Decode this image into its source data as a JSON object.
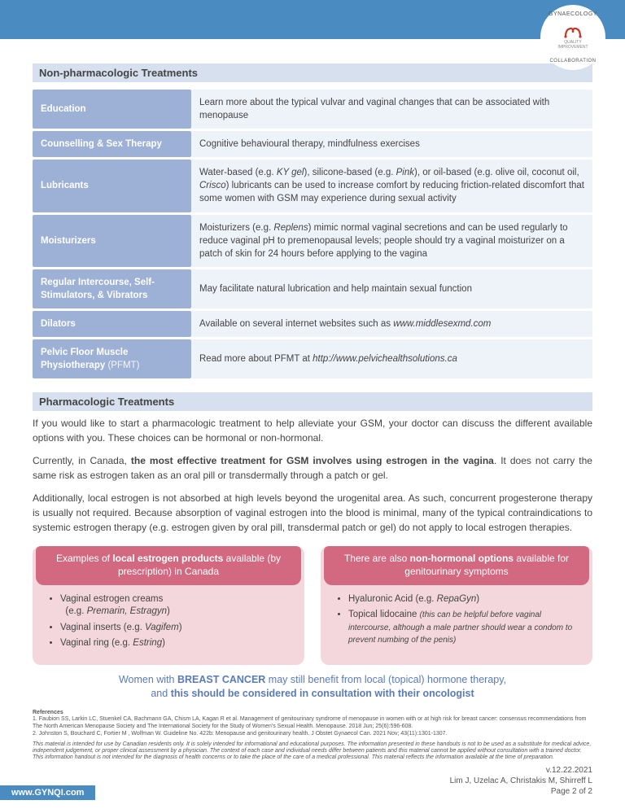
{
  "logo": {
    "top": "GYNAECOLOGY",
    "mid1": "QUALITY",
    "mid2": "IMPROVEMENT",
    "bot": "COLLABORATION",
    "symbol_color": "#c0392b"
  },
  "section1": {
    "title": "Non-pharmacologic Treatments",
    "rows": [
      {
        "label": "Education",
        "value": "Learn more about the typical vulvar and vaginal changes that can be associated with menopause"
      },
      {
        "label": "Counselling & Sex Therapy",
        "value": "Cognitive behavioural therapy, mindfulness exercises"
      },
      {
        "label": "Lubricants",
        "value": "Water-based (e.g. <em>KY gel</em>), silicone-based (e.g. <em>Pink</em>), or oil-based (e.g. olive oil, coconut oil, <em>Crisco</em>) lubricants can be used to increase comfort by reducing friction-related discomfort that some women with GSM may experience during sexual activity"
      },
      {
        "label": "Moisturizers",
        "value": "Moisturizers (e.g. <em>Replens</em>) mimic normal vaginal secretions and can be used regularly to reduce vaginal pH to premenopausal levels; people should try a vaginal moisturizer on a patch of skin for 24 hours before applying to the vagina"
      },
      {
        "label": "Regular Intercourse, Self-Stimulators, & Vibrators",
        "value": "May facilitate natural lubrication and help maintain sexual function"
      },
      {
        "label": "Dilators",
        "value": "Available on several internet websites such as <em>www.middlesexmd.com</em>"
      },
      {
        "label": "Pelvic Floor Muscle Physiotherapy <span class='sub'>(PFMT)</span>",
        "value": "Read more about PFMT at <em>http://www.pelvichealthsolutions.ca</em>"
      }
    ]
  },
  "section2": {
    "title": "Pharmacologic Treatments",
    "p1": "If you would like to start a pharmacologic treatment to help alleviate your GSM, your doctor can discuss the different available options with you. These choices can be hormonal or non-hormonal.",
    "p2": "Currently, in Canada, <strong>the most effective treatment for GSM involves using estrogen in the vagina</strong>. It does not carry the same risk as estrogen taken as an oral pill or transdermally through a patch or gel.",
    "p3": "Additionally, local estrogen is not absorbed at high levels beyond the urogenital area. As such, concurrent progesterone therapy is usually not required. Because absorption of vaginal estrogen into the blood is minimal, many of the typical contraindications to systemic estrogen therapy (e.g. estrogen given by oral pill, transdermal patch or gel) do not apply to local estrogen therapies."
  },
  "box1": {
    "head": "Examples of <strong>local estrogen products</strong> available (by prescription) in Canada",
    "items": [
      "Vaginal estrogen creams<br>&nbsp;&nbsp;(e.g. <em>Premarin, Estragyn</em>)",
      "Vaginal inserts (e.g. <em>Vagifem</em>)",
      "Vaginal ring (e.g. <em>Estring</em>)"
    ]
  },
  "box2": {
    "head": "There are also <strong>non-hormonal options</strong> available for genitourinary symptoms",
    "items": [
      "Hyaluronic Acid (e.g. <em>RepaGyn</em>)",
      "Topical lidocaine <span class='note'>(this can be helpful before vaginal intercourse, although a male partner should wear a condom to prevent numbing of the penis)</span>"
    ]
  },
  "bc_note": "Women with <strong>BREAST CANCER</strong> may still benefit from local (topical) hormone therapy,<br>and <strong>this should be considered in consultation with their oncologist</strong>",
  "refs": {
    "head": "References",
    "r1": "1. Faubion SS, Larkin LC, Stuenkel CA, Bachmann GA, Chism LA, Kagan R et al. Management of genitourinary syndrome of menopause in women with or at high risk for breast cancer: consensus recommendations from The North American Menopause Society and The International Society for the Study of Women's Sexual Health. Menopause. 2018 Jun; 25(6):596-608.",
    "r2": "2. Johnston S, Bouchard C, Fortier M , Wolfman W. Guideline No. 422b: Menopause and genitourinary health. J Obstet Gynaecol Can. 2021 Nov; 43(11):1301-1307."
  },
  "disclaimer": "This material is intended for use by Canadian residents only. It is solely intended for informational and educational purposes. The information presented in these handouts is not to be used as a substitute for medical advice, independent judgement, or proper clinical assessment by a physician. The context of each case and individual needs differ between patients and this material cannot be applied without consultation with a trained doctor. This information handout is not intended for the diagnosis of health concerns or to take the place of the care of a medical professional. This material reflects the information available at the time of preparation.",
  "footer": {
    "site": "www.GYNQI.com",
    "version": "v.12.22.2021",
    "authors": "Lim J, Uzelac A, Christakis M, Shirreff L",
    "page": "Page 2 of 2"
  },
  "colors": {
    "banner": "#4a8bc2",
    "section_head_bg": "#d6e0ef",
    "label_bg": "#9db0d6",
    "value_bg": "#eef2f9",
    "box_head_bg": "#d36980",
    "box_body_bg": "#f3d7dc",
    "bc_text": "#5a7bb8"
  }
}
